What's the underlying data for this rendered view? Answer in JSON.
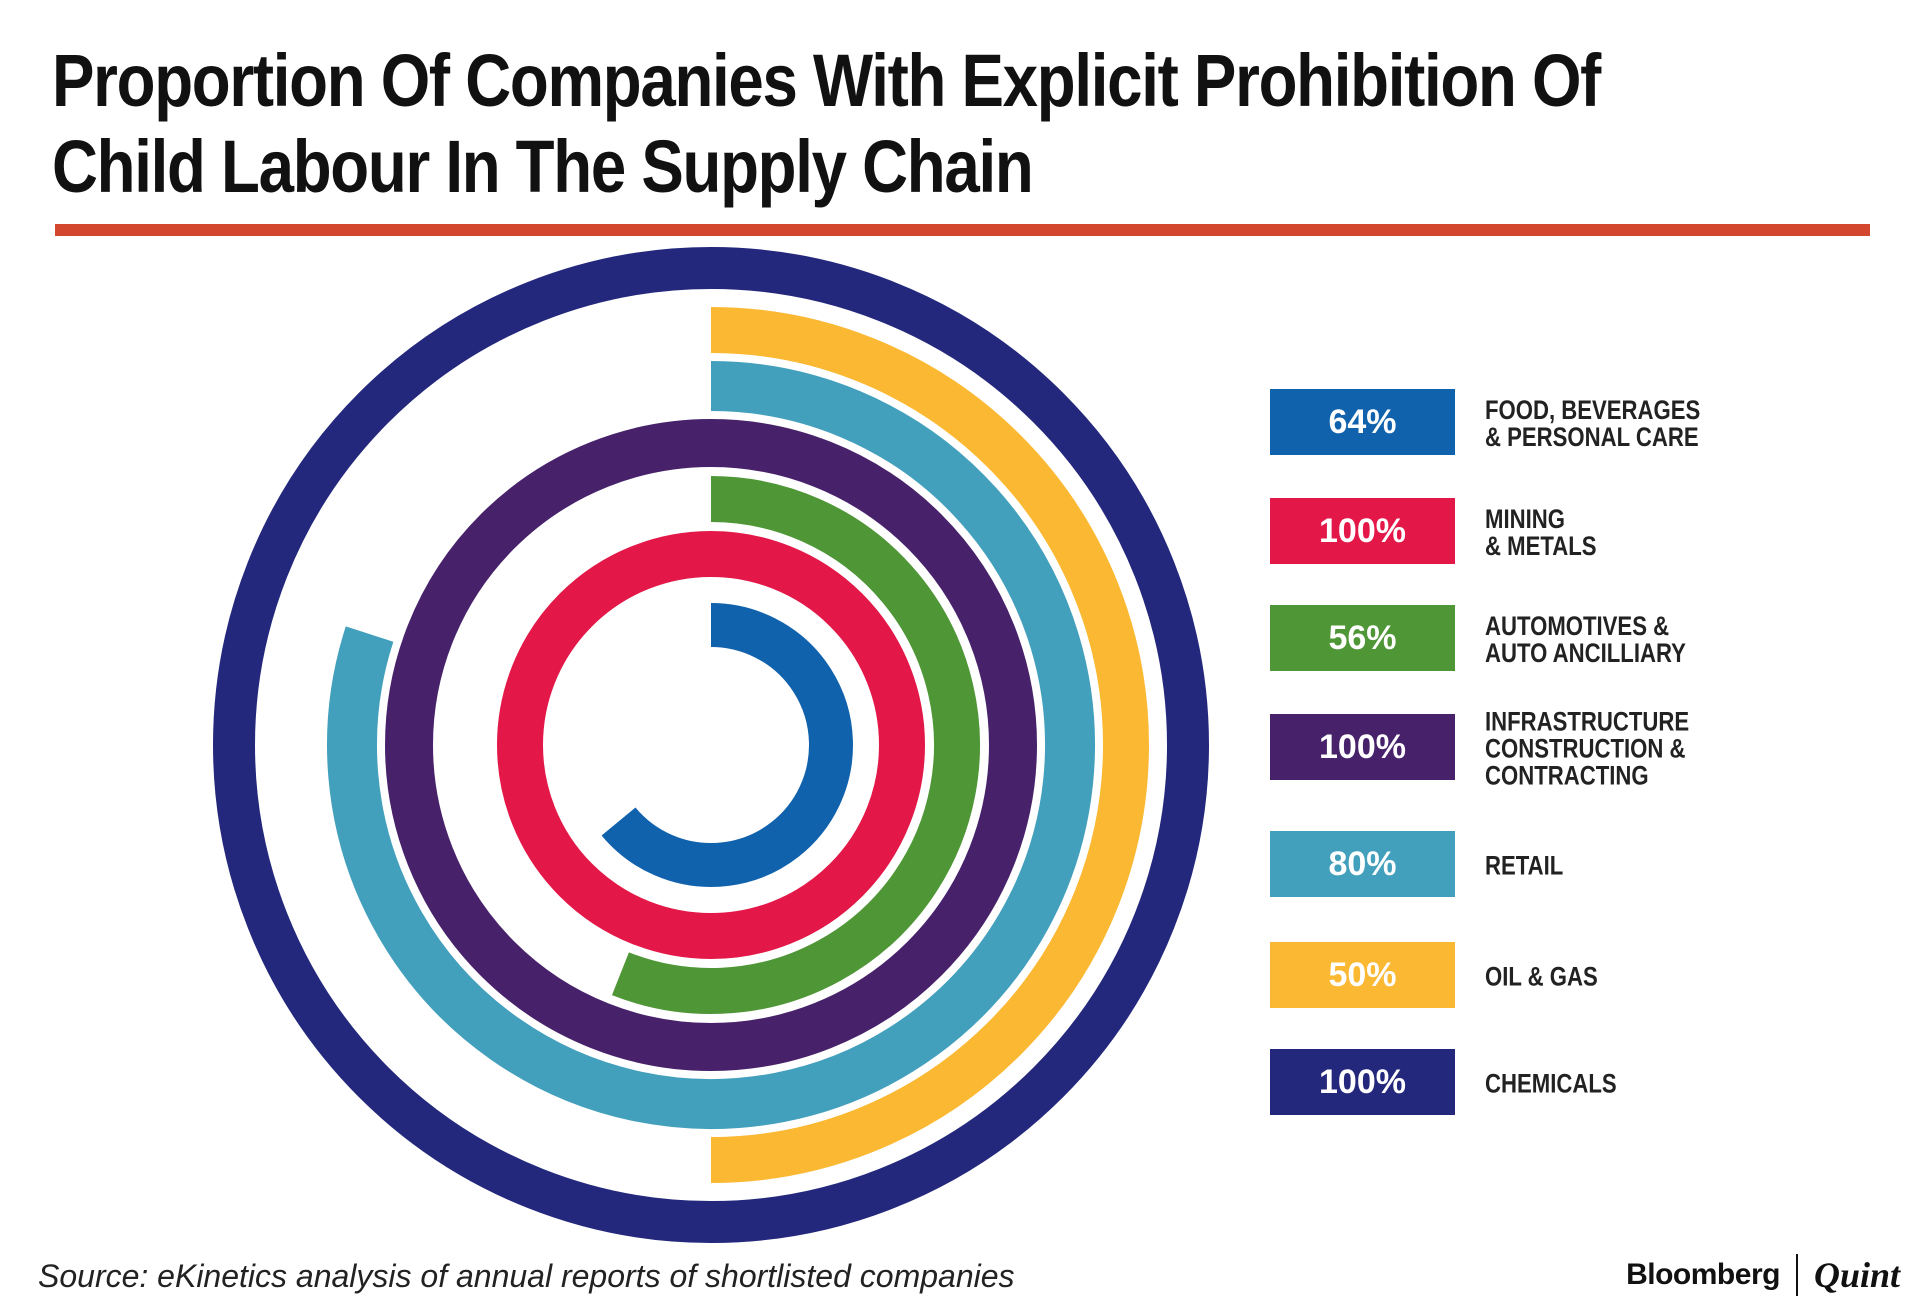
{
  "title": {
    "line1": "Proportion Of Companies With Explicit Prohibition Of",
    "line2": "Child Labour In The Supply Chain"
  },
  "chart_data": {
    "type": "radial-bar",
    "title": "Proportion Of Companies With Explicit Prohibition Of Child Labour In The Supply Chain",
    "series": [
      {
        "name": "Food, Beverages & Personal Care",
        "label_lines": [
          "FOOD, BEVERAGES",
          "& PERSONAL CARE"
        ],
        "value": 64,
        "display": "64%",
        "color": "#1062ad"
      },
      {
        "name": "Mining & Metals",
        "label_lines": [
          "MINING",
          "& METALS"
        ],
        "value": 100,
        "display": "100%",
        "color": "#e31848"
      },
      {
        "name": "Automotives & Auto Ancilliary",
        "label_lines": [
          "AUTOMOTIVES &",
          "AUTO ANCILLIARY"
        ],
        "value": 56,
        "display": "56%",
        "color": "#4f9636"
      },
      {
        "name": "Infrastructure Construction & Contracting",
        "label_lines": [
          "INFRASTRUCTURE",
          "CONSTRUCTION &",
          "CONTRACTING"
        ],
        "value": 100,
        "display": "100%",
        "color": "#47226b"
      },
      {
        "name": "Retail",
        "label_lines": [
          "RETAIL"
        ],
        "value": 80,
        "display": "80%",
        "color": "#43a0bd"
      },
      {
        "name": "Oil & Gas",
        "label_lines": [
          "OIL & GAS"
        ],
        "value": 50,
        "display": "50%",
        "color": "#fbb832"
      },
      {
        "name": "Chemicals",
        "label_lines": [
          "CHEMICALS"
        ],
        "value": 100,
        "display": "100%",
        "color": "#24287c"
      }
    ],
    "max": 100,
    "legend_position": "right"
  },
  "footer": {
    "source": "Source: eKinetics analysis of annual reports of shortlisted companies",
    "brand_primary": "Bloomberg",
    "brand_secondary": "Quint"
  },
  "accent_color": "#d4472f"
}
